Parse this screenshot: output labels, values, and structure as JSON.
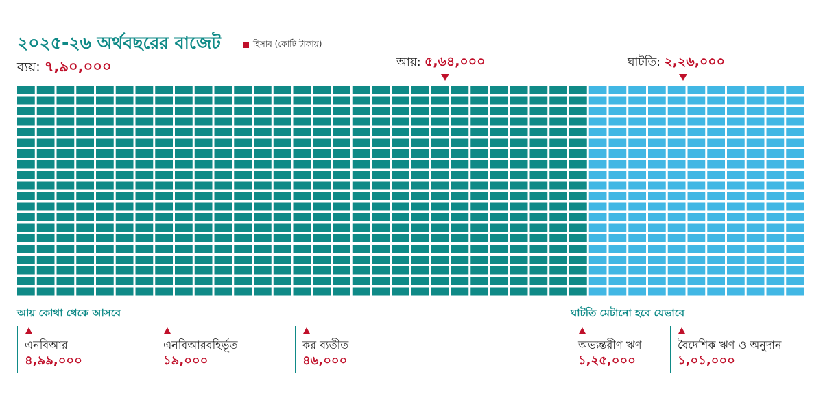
{
  "title": "২০২৫-২৬ অর্থবছরের বাজেট",
  "legend": "হিসাব (কোটি টাকায়)",
  "total": {
    "label": "ব্যয়:",
    "value": "৭,৯০,০০০"
  },
  "income": {
    "label": "আয়:",
    "value": "৫,৬৪,০০০"
  },
  "deficit": {
    "label": "ঘাটতি:",
    "value": "২,২৬,০০০"
  },
  "income_sources": {
    "heading": "আয় কোথা থেকে আসবে",
    "items": [
      {
        "label": "এনবিআর",
        "value": "৪,৯৯,০০০"
      },
      {
        "label": "এনবিআরবহির্ভূত",
        "value": "১৯,০০০"
      },
      {
        "label": "কর ব্যতীত",
        "value": "৪৬,০০০"
      }
    ]
  },
  "deficit_financing": {
    "heading": "ঘাটতি মেটানো হবে যেভাবে",
    "items": [
      {
        "label": "অভ্যন্তরীণ ঋণ",
        "value": "১,২৫,০০০"
      },
      {
        "label": "বৈদেশিক ঋণ ও অনুদান",
        "value": "১,০১,০০০"
      }
    ]
  },
  "colors": {
    "income": "#0f8a87",
    "deficit": "#41b7e4",
    "accent": "#c0102a"
  },
  "chart_data": {
    "type": "waffle",
    "unit": "কোটি টাকা",
    "total": 790000,
    "series": [
      {
        "name": "আয়",
        "value": 564000
      },
      {
        "name": "ঘাটতি",
        "value": 226000
      }
    ],
    "income_breakdown": [
      {
        "name": "এনবিআর",
        "value": 499000
      },
      {
        "name": "এনবিআরবহির্ভূত",
        "value": 19000
      },
      {
        "name": "কর ব্যতীত",
        "value": 46000
      }
    ],
    "deficit_breakdown": [
      {
        "name": "অভ্যন্তরীণ ঋণ",
        "value": 125000
      },
      {
        "name": "বৈদেশিক ঋণ ও অনুদান",
        "value": 101000
      }
    ]
  }
}
